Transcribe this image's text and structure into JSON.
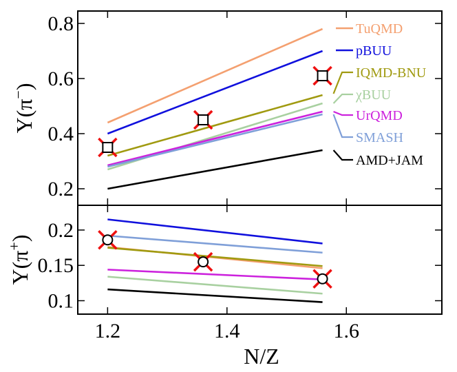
{
  "chart_data": {
    "type": "line",
    "xlabel": "N/Z",
    "xlim": [
      1.15,
      1.76
    ],
    "xticks": [
      1.2,
      1.4,
      1.6
    ],
    "xtick_labels": [
      "1.2",
      "1.4",
      "1.6"
    ],
    "x": [
      1.2,
      1.56
    ],
    "panels": [
      {
        "id": "pi-minus",
        "ylabel_main": "Y(π",
        "ylabel_sup": "−",
        "ylabel_close": ")",
        "ylim": [
          0.14,
          0.845
        ],
        "yticks": [
          0.2,
          0.4,
          0.6,
          0.8
        ],
        "ytick_labels": [
          "0.2",
          "0.4",
          "0.6",
          "0.8"
        ],
        "series": [
          {
            "name": "TuQMD",
            "color": "#f4a070",
            "values": [
              0.44,
              0.78
            ]
          },
          {
            "name": "pBUU",
            "color": "#1010dd",
            "values": [
              0.4,
              0.7
            ]
          },
          {
            "name": "IQMD-BNU",
            "color": "#a09a10",
            "values": [
              0.32,
              0.54
            ]
          },
          {
            "name": "χBUU",
            "color": "#a8d0a0",
            "values": [
              0.27,
              0.51
            ]
          },
          {
            "name": "UrQMD",
            "color": "#cc22dd",
            "values": [
              0.285,
              0.48
            ]
          },
          {
            "name": "SMASH",
            "color": "#7f9fd8",
            "values": [
              0.28,
              0.47
            ]
          },
          {
            "name": "AMD+JAM",
            "color": "#000000",
            "values": [
              0.2,
              0.34
            ]
          }
        ],
        "experiment": {
          "marker": "square",
          "x": [
            1.2,
            1.36,
            1.56
          ],
          "y": [
            0.35,
            0.45,
            0.61
          ]
        }
      },
      {
        "id": "pi-plus",
        "ylabel_main": "Y(π",
        "ylabel_sup": "+",
        "ylabel_close": ")",
        "ylim": [
          0.081,
          0.235
        ],
        "yticks": [
          0.1,
          0.15,
          0.2
        ],
        "ytick_labels": [
          "0.1",
          "0.15",
          "0.2"
        ],
        "series": [
          {
            "name": "TuQMD",
            "color": "#f4a070",
            "values": [
              0.176,
              0.146
            ]
          },
          {
            "name": "pBUU",
            "color": "#1010dd",
            "values": [
              0.215,
              0.181
            ]
          },
          {
            "name": "IQMD-BNU",
            "color": "#a09a10",
            "values": [
              0.175,
              0.149
            ]
          },
          {
            "name": "χBUU",
            "color": "#a8d0a0",
            "values": [
              0.134,
              0.11
            ]
          },
          {
            "name": "UrQMD",
            "color": "#cc22dd",
            "values": [
              0.144,
              0.13
            ]
          },
          {
            "name": "SMASH",
            "color": "#7f9fd8",
            "values": [
              0.192,
              0.168
            ]
          },
          {
            "name": "AMD+JAM",
            "color": "#000000",
            "values": [
              0.116,
              0.098
            ]
          }
        ],
        "experiment": {
          "marker": "circle",
          "x": [
            1.2,
            1.36,
            1.56
          ],
          "y": [
            0.186,
            0.155,
            0.131
          ]
        }
      }
    ],
    "legend": {
      "placement": "right of top panel",
      "entries": [
        {
          "name": "TuQMD",
          "color": "#f4a070"
        },
        {
          "name": "pBUU",
          "color": "#1010dd"
        },
        {
          "name": "IQMD-BNU",
          "color": "#a09a10"
        },
        {
          "name": "χBUU",
          "color": "#a8d0a0"
        },
        {
          "name": "UrQMD",
          "color": "#cc22dd"
        },
        {
          "name": "SMASH",
          "color": "#7f9fd8"
        },
        {
          "name": "AMD+JAM",
          "color": "#000000"
        }
      ]
    },
    "marker_cross_color": "#ee1111"
  }
}
